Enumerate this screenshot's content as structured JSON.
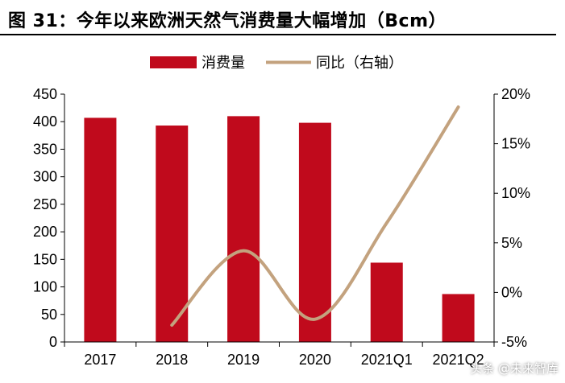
{
  "title": "图 31：今年以来欧洲天然气消费量大幅增加（Bcm）",
  "watermark": "头条 @未来智库",
  "colors": {
    "bar": "#c00a1c",
    "line": "#c3a27e",
    "axis": "#000000"
  },
  "chart_data": {
    "type": "bar",
    "categories": [
      "2017",
      "2018",
      "2019",
      "2020",
      "2021Q1",
      "2021Q2"
    ],
    "series": [
      {
        "name": "消费量",
        "type": "bar",
        "axis": "left",
        "values": [
          407,
          393,
          410,
          398,
          144,
          87
        ]
      },
      {
        "name": "同比（右轴）",
        "type": "line",
        "axis": "right",
        "values": [
          null,
          -3.3,
          4.2,
          -2.7,
          7.0,
          18.7
        ]
      }
    ],
    "ylim": [
      0,
      450
    ],
    "yticks": [
      "0",
      "50",
      "100",
      "150",
      "200",
      "250",
      "300",
      "350",
      "400",
      "450"
    ],
    "y2lim": [
      -5,
      20
    ],
    "y2ticks": [
      "-5%",
      "0%",
      "5%",
      "10%",
      "15%",
      "20%"
    ],
    "legend_position": "top-center",
    "grid": false
  }
}
